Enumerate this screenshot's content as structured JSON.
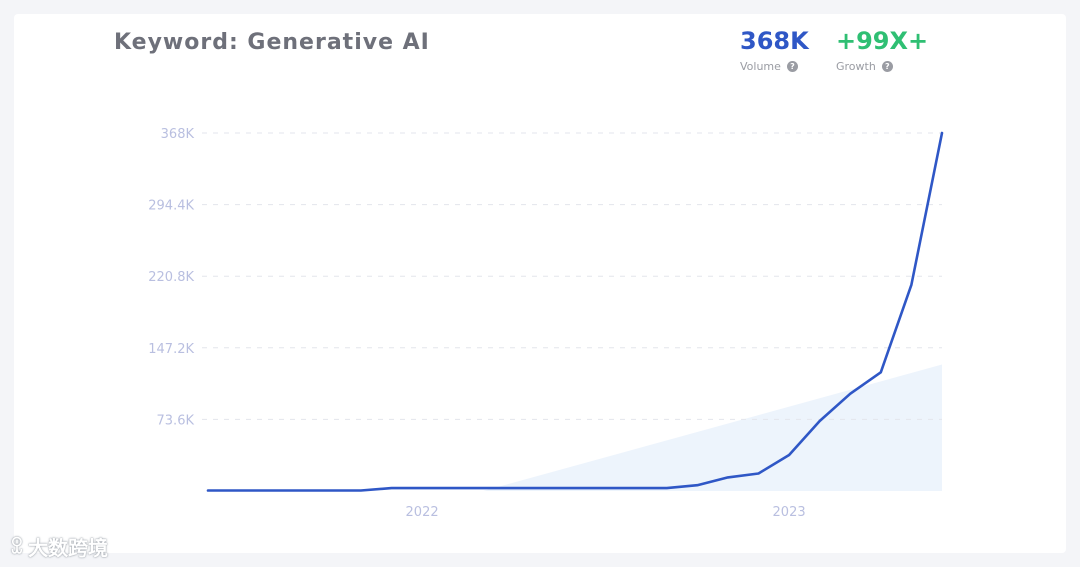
{
  "header": {
    "title": "Keyword: Generative AI",
    "volume_value": "368K",
    "volume_label": "Volume",
    "growth_value": "+99X+",
    "growth_label": "Growth"
  },
  "watermark": "大数跨境",
  "colors": {
    "line": "#2f57c6",
    "area": "#e8f1fb",
    "volume": "#2f57c6",
    "growth": "#2fbf73",
    "grid": "#e3e5ec",
    "tick": "#b9bfe0"
  },
  "chart_data": {
    "type": "line",
    "title": "Keyword: Generative AI",
    "xlabel": "",
    "ylabel": "",
    "ylim": [
      0,
      368000
    ],
    "yticks": [
      73600,
      147200,
      220800,
      294400,
      368000
    ],
    "ytick_labels": [
      "73.6K",
      "147.2K",
      "220.8K",
      "294.4K",
      "368K"
    ],
    "xlim": [
      "2021-06",
      "2023-06"
    ],
    "xticks": [
      "2022-01",
      "2023-01"
    ],
    "xtick_labels": [
      "2022",
      "2023"
    ],
    "grid": true,
    "series": [
      {
        "x": [
          "2021-06",
          "2021-07",
          "2021-08",
          "2021-09",
          "2021-10",
          "2021-11",
          "2021-12",
          "2022-01",
          "2022-02",
          "2022-03",
          "2022-04",
          "2022-05",
          "2022-06",
          "2022-07",
          "2022-08",
          "2022-09",
          "2022-10",
          "2022-11",
          "2022-12",
          "2023-01",
          "2023-02",
          "2023-03",
          "2023-04",
          "2023-05",
          "2023-06"
        ],
        "values": [
          500,
          500,
          500,
          500,
          500,
          500,
          3000,
          3000,
          3000,
          3000,
          3000,
          3000,
          3000,
          3000,
          3000,
          3000,
          6000,
          14000,
          18000,
          37000,
          72000,
          100000,
          122000,
          212000,
          368000
        ]
      }
    ],
    "trend_area": {
      "x": [
        "2022-03",
        "2023-06"
      ],
      "values": [
        0,
        130000
      ]
    }
  }
}
